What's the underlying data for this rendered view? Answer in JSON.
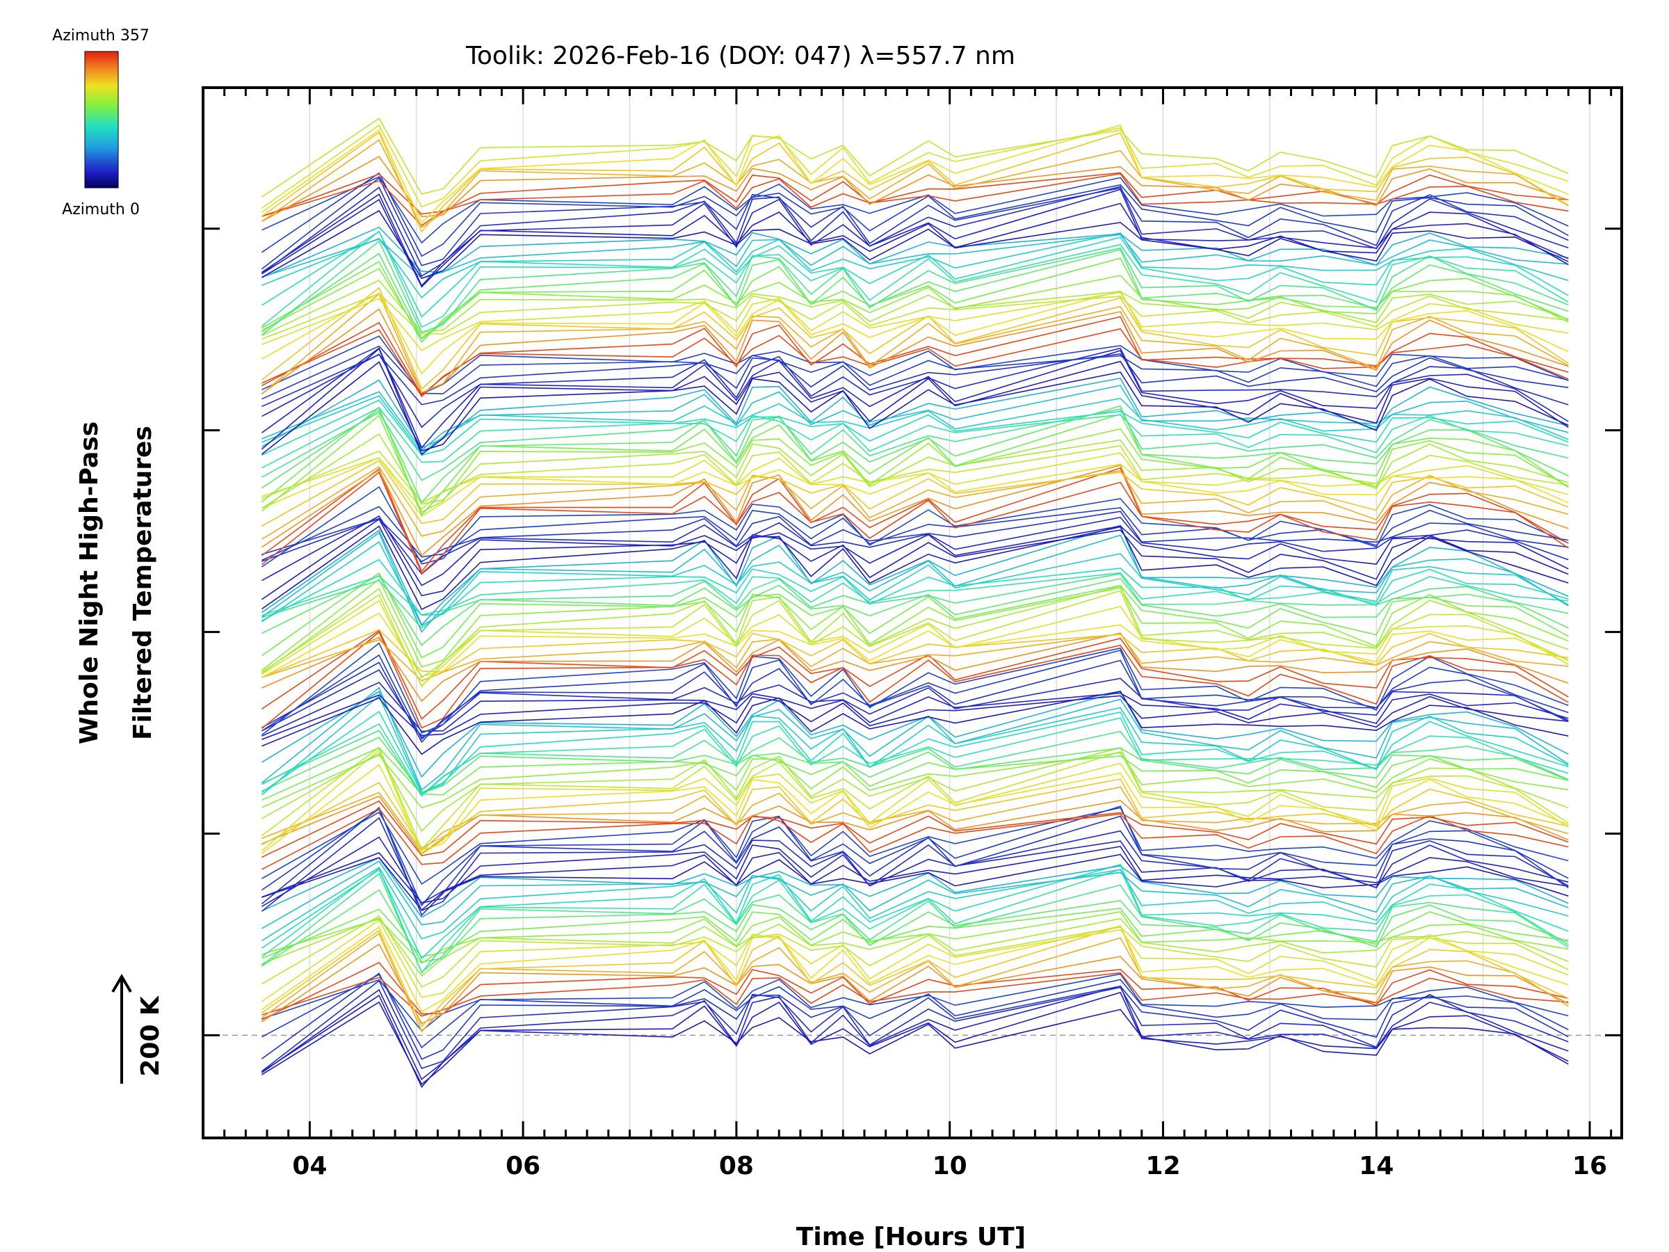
{
  "chart_data": {
    "type": "line",
    "title": "Toolik: 2026-Feb-16 (DOY: 047) λ=557.7 nm",
    "xlabel": "Time [Hours UT]",
    "ylabel_lines": [
      "Whole Night High-Pass",
      "Filtered Temperatures"
    ],
    "scale_label": "200 K",
    "xlim": [
      3.0,
      16.3
    ],
    "x_ticks": [
      4,
      6,
      8,
      10,
      12,
      14,
      16
    ],
    "x_tick_labels": [
      "04",
      "06",
      "08",
      "10",
      "12",
      "14",
      "16"
    ],
    "y_offset_units_per_trace": 3.2,
    "ylim": [
      -6.5,
      60
    ],
    "baseline_value": 0,
    "grid": "vertical gridlines at each hour",
    "colorbar": {
      "top_label": "Azimuth 357",
      "bottom_label": "Azimuth 0",
      "colormap": "rainbow"
    },
    "trace_count": 140,
    "time_points": [
      3.55,
      4.65,
      5.05,
      5.25,
      5.6,
      7.4,
      7.7,
      8.0,
      8.15,
      8.4,
      8.7,
      9.0,
      9.25,
      9.8,
      10.05,
      11.6,
      11.8,
      12.5,
      12.8,
      13.1,
      13.5,
      14.0,
      14.15,
      14.5,
      14.85,
      15.3,
      15.8
    ],
    "waveform_note": "Each trace is one azimuth sample, stacked with a constant vertical offset; traces follow a common night-long waveform with sharp dips near 05 UT, 09.2 UT and 14 UT.",
    "waveform_template": [
      -2.5,
      1.8,
      -2.8,
      -2.0,
      0.0,
      0.2,
      0.9,
      -0.8,
      0.8,
      1.1,
      -0.7,
      0.2,
      -1.2,
      0.4,
      -0.5,
      1.6,
      -0.4,
      -0.6,
      -0.9,
      -0.3,
      -0.7,
      -1.3,
      0.1,
      0.8,
      0.4,
      -0.2,
      -1.5
    ]
  }
}
